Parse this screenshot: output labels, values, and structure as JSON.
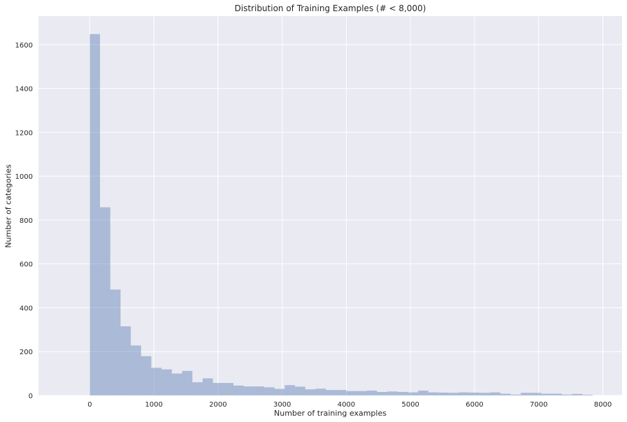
{
  "chart_data": {
    "type": "bar",
    "title": "Distribution of Training Examples (# < 8,000)",
    "xlabel": "Number of training examples",
    "ylabel": "Number of categories",
    "xlim": [
      -800,
      8300
    ],
    "ylim": [
      0,
      1730
    ],
    "xticks": [
      0,
      1000,
      2000,
      3000,
      4000,
      5000,
      6000,
      7000,
      8000
    ],
    "yticks": [
      0,
      200,
      400,
      600,
      800,
      1000,
      1200,
      1400,
      1600
    ],
    "bin_width": 160,
    "bin_start": 0,
    "values": [
      1648,
      858,
      483,
      315,
      228,
      179,
      126,
      119,
      100,
      112,
      60,
      78,
      57,
      57,
      45,
      41,
      41,
      37,
      30,
      47,
      40,
      28,
      31,
      25,
      25,
      20,
      20,
      22,
      16,
      18,
      16,
      14,
      22,
      14,
      13,
      12,
      14,
      13,
      12,
      14,
      8,
      4,
      12,
      12,
      8,
      8,
      4,
      7,
      3
    ],
    "grid": true,
    "colors": {
      "bar": "#4c72b0",
      "bar_opacity": 0.4,
      "background": "#eaeaf2",
      "grid": "#ffffff"
    }
  }
}
